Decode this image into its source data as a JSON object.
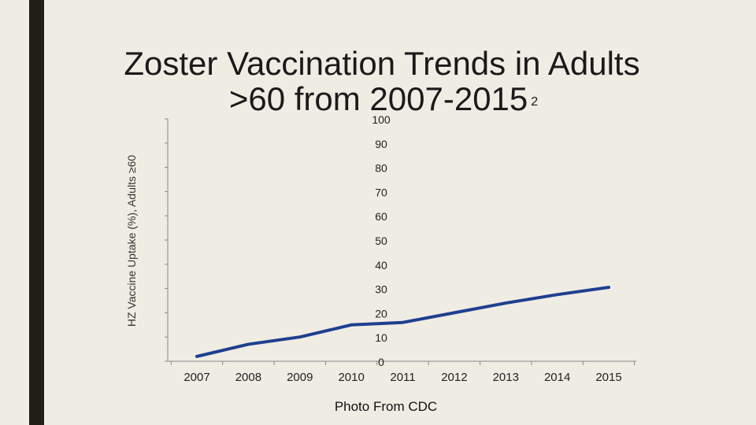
{
  "slide": {
    "title_line1": "Zoster Vaccination Trends in Adults",
    "title_line2": ">60 from 2007-2015",
    "title_superscript": "2",
    "caption": "Photo From CDC",
    "accent_color": "#1f1f17",
    "background_color": "#efece4"
  },
  "chart_data": {
    "type": "line",
    "title": "",
    "xlabel": "",
    "ylabel": "HZ Vaccine Uptake (%), Adults ≥60",
    "categories": [
      "2007",
      "2008",
      "2009",
      "2010",
      "2011",
      "2012",
      "2013",
      "2014",
      "2015"
    ],
    "yticks": [
      "0",
      "10",
      "20",
      "30",
      "40",
      "50",
      "60",
      "70",
      "80",
      "90",
      "100"
    ],
    "ylim": [
      0,
      100
    ],
    "grid": false,
    "series": [
      {
        "values": [
          2,
          7,
          10,
          15,
          16,
          20,
          24,
          27.5,
          30.5
        ],
        "color": "#1f3f8f"
      }
    ]
  }
}
